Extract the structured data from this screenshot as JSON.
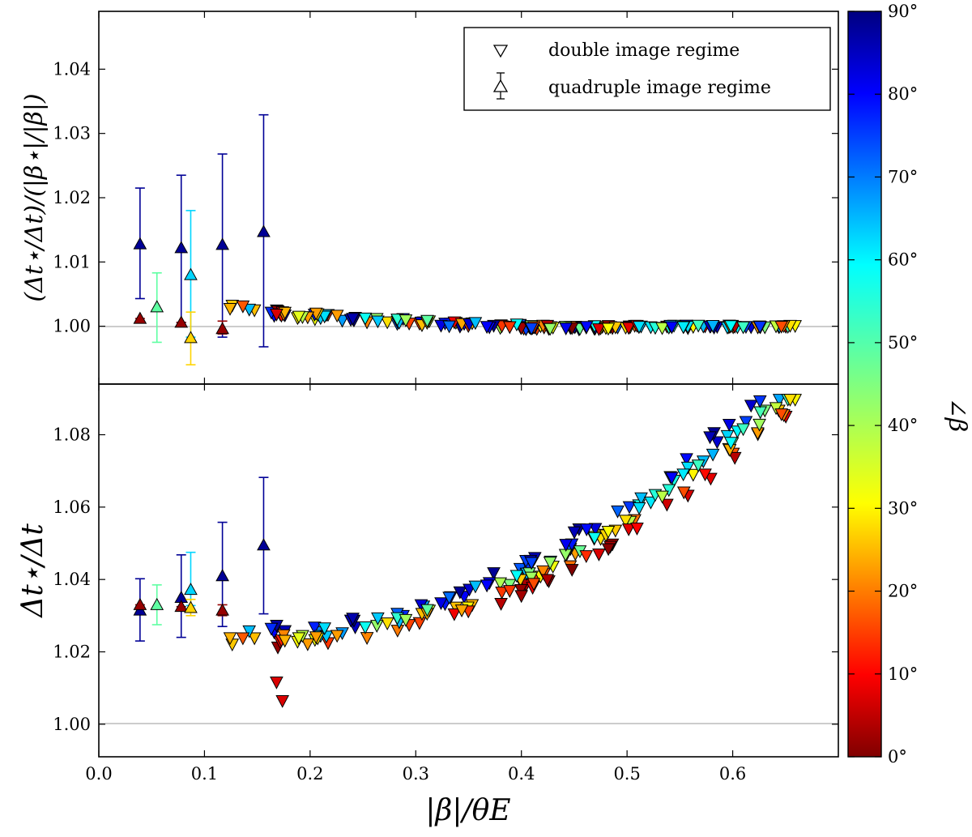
{
  "chart_data": [
    {
      "type": "scatter",
      "panel": "top",
      "ylabel": "(Δt⋆/Δt)/(|β⋆|/|β|)",
      "xlim": [
        0.0,
        0.7
      ],
      "ylim": [
        0.991,
        1.049
      ],
      "ytick_values": [
        1.0,
        1.01,
        1.02,
        1.03,
        1.04
      ],
      "ytick_labels": [
        "1.00",
        "1.01",
        "1.02",
        "1.03",
        "1.04"
      ],
      "reference_line": 1.0,
      "legend": {
        "location": "top-right",
        "entries": [
          {
            "marker": "down-triangle",
            "label": "double image regime"
          },
          {
            "marker": "up-triangle-errorbar",
            "label": "quadruple image regime"
          }
        ]
      },
      "quadruple_series": [
        {
          "x": 0.039,
          "y": 1.0128,
          "err_low": 1.0043,
          "err_high": 1.0215,
          "angle": 88
        },
        {
          "x": 0.039,
          "y": 1.0012,
          "err_low": 1.0012,
          "err_high": 1.0012,
          "angle": 2
        },
        {
          "x": 0.055,
          "y": 1.003,
          "err_low": 0.9975,
          "err_high": 1.0083,
          "angle": 48
        },
        {
          "x": 0.078,
          "y": 1.0122,
          "err_low": 1.0006,
          "err_high": 1.0235,
          "angle": 88
        },
        {
          "x": 0.078,
          "y": 1.0006,
          "err_low": 1.0006,
          "err_high": 1.0006,
          "angle": 2
        },
        {
          "x": 0.087,
          "y": 1.008,
          "err_low": 0.9983,
          "err_high": 1.018,
          "angle": 60
        },
        {
          "x": 0.087,
          "y": 0.9982,
          "err_low": 0.994,
          "err_high": 1.0022,
          "angle": 30
        },
        {
          "x": 0.117,
          "y": 1.0127,
          "err_low": 0.9983,
          "err_high": 1.0268,
          "angle": 88
        },
        {
          "x": 0.117,
          "y": 0.9996,
          "err_low": 0.9988,
          "err_high": 1.0008,
          "angle": 2
        },
        {
          "x": 0.156,
          "y": 1.0147,
          "err_low": 0.9968,
          "err_high": 1.0329,
          "angle": 88
        }
      ],
      "double_series": {
        "note": "about 200 lens systems with |beta|/theta_E from 0.12 to 0.66; ratio falls from about 1.004 to 1.000",
        "x_range": [
          0.12,
          0.66
        ],
        "y_trend_start": 1.0042,
        "y_trend_end": 1.0,
        "angle_range": [
          0,
          90
        ]
      }
    },
    {
      "type": "scatter",
      "panel": "bottom",
      "xlabel": "|β|/θE",
      "ylabel": "Δt⋆/Δt",
      "xlim": [
        0.0,
        0.7
      ],
      "ylim": [
        0.991,
        1.094
      ],
      "xtick_values": [
        0.0,
        0.1,
        0.2,
        0.3,
        0.4,
        0.5,
        0.6
      ],
      "xtick_labels": [
        "0.0",
        "0.1",
        "0.2",
        "0.3",
        "0.4",
        "0.5",
        "0.6"
      ],
      "ytick_values": [
        1.0,
        1.02,
        1.04,
        1.06,
        1.08
      ],
      "ytick_labels": [
        "1.00",
        "1.02",
        "1.04",
        "1.06",
        "1.08"
      ],
      "reference_line": 1.0,
      "quadruple_series": [
        {
          "x": 0.039,
          "y": 1.0315,
          "err_low": 1.023,
          "err_high": 1.0402,
          "angle": 88
        },
        {
          "x": 0.039,
          "y": 1.033,
          "err_low": 1.033,
          "err_high": 1.033,
          "angle": 2
        },
        {
          "x": 0.055,
          "y": 1.033,
          "err_low": 1.0275,
          "err_high": 1.0385,
          "angle": 48
        },
        {
          "x": 0.078,
          "y": 1.035,
          "err_low": 1.024,
          "err_high": 1.0468,
          "angle": 88
        },
        {
          "x": 0.078,
          "y": 1.0325,
          "err_low": 1.0325,
          "err_high": 1.0325,
          "angle": 2
        },
        {
          "x": 0.087,
          "y": 1.0372,
          "err_low": 1.0328,
          "err_high": 1.0475,
          "angle": 60
        },
        {
          "x": 0.087,
          "y": 1.0322,
          "err_low": 1.03,
          "err_high": 1.0345,
          "angle": 30
        },
        {
          "x": 0.117,
          "y": 1.041,
          "err_low": 1.027,
          "err_high": 1.0558,
          "angle": 88
        },
        {
          "x": 0.117,
          "y": 1.0315,
          "err_low": 1.03,
          "err_high": 1.033,
          "angle": 2
        },
        {
          "x": 0.156,
          "y": 1.0495,
          "err_low": 1.0305,
          "err_high": 1.0682,
          "angle": 88
        }
      ],
      "double_series": {
        "note": "about 200 lens systems; ratio dips to about 1.005 near |beta|/theta_E = 0.2 then rises roughly quadratically to about 1.089 at 0.66; lower angles lie lower",
        "x_range": [
          0.12,
          0.66
        ],
        "y_min": 1.0045,
        "y_max": 1.0895,
        "angle_range": [
          0,
          90
        ]
      }
    }
  ],
  "colorbar": {
    "label": "∠β",
    "min": 0,
    "max": 90,
    "colormap": "jet-reversed",
    "tick_labels": [
      "0°",
      "10°",
      "20°",
      "30°",
      "40°",
      "50°",
      "60°",
      "70°",
      "80°",
      "90°"
    ]
  }
}
